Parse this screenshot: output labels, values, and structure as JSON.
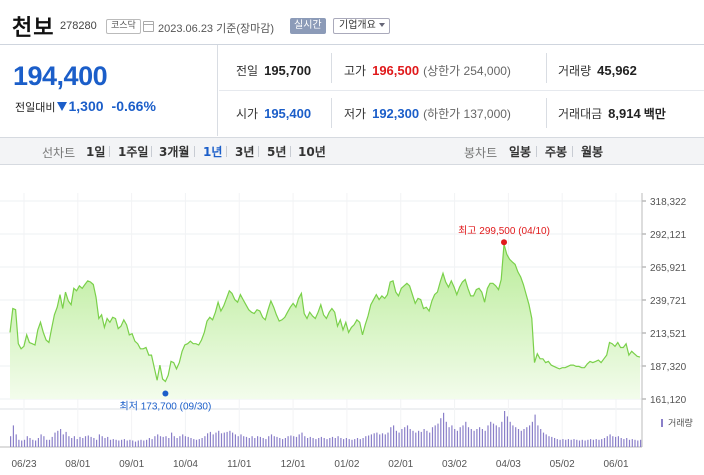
{
  "header": {
    "stock_name": "천보",
    "stock_code": "278280",
    "market": "코스닥",
    "date": "2023.06.23",
    "date_suffix": "기준(장마감)",
    "realtime_label": "실시간",
    "overview_label": "기업개요"
  },
  "price": {
    "current": "194,400",
    "change_label": "전일대비",
    "change": "1,300",
    "change_pct": "-0.66%",
    "direction": "down"
  },
  "quote": {
    "prev_close_label": "전일",
    "prev_close": "195,700",
    "high_label": "고가",
    "high": "196,500",
    "upper_limit": "(상한가 254,000)",
    "volume_label": "거래량",
    "volume": "45,962",
    "open_label": "시가",
    "open": "195,400",
    "low_label": "저가",
    "low": "192,300",
    "lower_limit": "(하한가 137,000)",
    "amount_label": "거래대금",
    "amount": "8,914",
    "amount_unit": "백만"
  },
  "tabs": {
    "line_chart_label": "선차트",
    "line_periods": [
      "1일",
      "1주일",
      "3개월",
      "1년",
      "3년",
      "5년",
      "10년"
    ],
    "active_period": "1년",
    "candle_chart_label": "봉차트",
    "candle_periods": [
      "일봉",
      "주봉",
      "월봉"
    ]
  },
  "colors": {
    "price_down": "#1b5ec9",
    "price_up": "#e0191b",
    "line": "#7ad04a",
    "area_top": "#b9ec98",
    "area_bottom": "#f3fcec",
    "volume_bar": "#8a7fc9"
  },
  "chart_data": {
    "type": "area",
    "y_ticks": [
      "318,322",
      "292,121",
      "265,921",
      "239,721",
      "213,521",
      "187,320",
      "161,120"
    ],
    "ylim": [
      161120,
      318322
    ],
    "x_ticks": [
      "06/23",
      "08/01",
      "09/01",
      "10/04",
      "11/01",
      "12/01",
      "01/02",
      "02/01",
      "03/02",
      "04/03",
      "05/02",
      "06/01"
    ],
    "high_label": "최고 299,500 (04/10)",
    "low_label": "최저 173,700 (09/30)",
    "volume_label": "거래량",
    "series": [
      {
        "values": [
          214000,
          233000,
          232000,
          205000,
          201000,
          203000,
          212000,
          206000,
          205000,
          204000,
          216000,
          222000,
          214000,
          208000,
          206000,
          217000,
          228000,
          234000,
          244000,
          233000,
          246000,
          239000,
          236000,
          249000,
          247000,
          251000,
          249000,
          252000,
          255000,
          254000,
          252000,
          242000,
          225000,
          228000,
          218000,
          225000,
          222000,
          226000,
          225000,
          217000,
          219000,
          224000,
          220000,
          212000,
          213000,
          207000,
          205000,
          201000,
          201000,
          202000,
          196000,
          196000,
          186000,
          176000,
          188000,
          177000,
          175000,
          180000,
          191000,
          190000,
          185000,
          190000,
          199000,
          204000,
          205000,
          207000,
          205000,
          205000,
          204000,
          208000,
          214000,
          223000,
          226000,
          224000,
          230000,
          238000,
          231000,
          235000,
          241000,
          247000,
          245000,
          240000,
          238000,
          244000,
          240000,
          236000,
          232000,
          230000,
          229000,
          232000,
          231000,
          226000,
          224000,
          232000,
          239000,
          234000,
          228000,
          223000,
          224000,
          226000,
          230000,
          234000,
          237000,
          234000,
          241000,
          245000,
          229000,
          225000,
          230000,
          227000,
          225000,
          230000,
          236000,
          228000,
          225000,
          230000,
          233000,
          230000,
          219000,
          224000,
          216000,
          222000,
          214000,
          218000,
          220000,
          224000,
          222000,
          212000,
          220000,
          227000,
          236000,
          240000,
          244000,
          240000,
          243000,
          241000,
          244000,
          254000,
          255000,
          246000,
          243000,
          249000,
          251000,
          253000,
          251000,
          244000,
          237000,
          241000,
          240000,
          233000,
          234000,
          231000,
          239000,
          244000,
          246000,
          254000,
          261000,
          254000,
          250000,
          255000,
          250000,
          244000,
          250000,
          254000,
          256000,
          249000,
          243000,
          243000,
          248000,
          249000,
          246000,
          238000,
          249000,
          253000,
          253000,
          251000,
          248000,
          256000,
          284000,
          276000,
          272000,
          270000,
          268000,
          262000,
          258000,
          252000,
          244000,
          236000,
          225000,
          190000,
          197000,
          193000,
          193000,
          190000,
          191000,
          188000,
          187000,
          186000,
          185000,
          186000,
          186000,
          187000,
          188000,
          188000,
          187000,
          187000,
          186000,
          186000,
          189000,
          191000,
          190000,
          191000,
          192000,
          190000,
          193000,
          196000,
          206000,
          205000,
          203000,
          206000,
          202000,
          202000,
          205000,
          196000,
          199000,
          197000,
          195000,
          194400
        ]
      }
    ],
    "volume_relative": [
      0.3,
      0.6,
      0.35,
      0.2,
      0.18,
      0.2,
      0.3,
      0.25,
      0.2,
      0.18,
      0.25,
      0.35,
      0.3,
      0.2,
      0.2,
      0.28,
      0.4,
      0.45,
      0.5,
      0.35,
      0.42,
      0.3,
      0.25,
      0.3,
      0.22,
      0.28,
      0.25,
      0.3,
      0.32,
      0.28,
      0.25,
      0.2,
      0.35,
      0.3,
      0.25,
      0.28,
      0.2,
      0.22,
      0.2,
      0.18,
      0.2,
      0.22,
      0.18,
      0.2,
      0.18,
      0.15,
      0.18,
      0.2,
      0.18,
      0.2,
      0.25,
      0.22,
      0.3,
      0.35,
      0.3,
      0.28,
      0.3,
      0.25,
      0.4,
      0.3,
      0.25,
      0.3,
      0.35,
      0.3,
      0.28,
      0.25,
      0.22,
      0.2,
      0.22,
      0.25,
      0.3,
      0.38,
      0.42,
      0.35,
      0.4,
      0.45,
      0.38,
      0.4,
      0.42,
      0.45,
      0.4,
      0.35,
      0.3,
      0.35,
      0.3,
      0.28,
      0.25,
      0.3,
      0.25,
      0.3,
      0.28,
      0.25,
      0.22,
      0.3,
      0.35,
      0.3,
      0.28,
      0.25,
      0.22,
      0.25,
      0.3,
      0.32,
      0.3,
      0.28,
      0.35,
      0.4,
      0.3,
      0.25,
      0.28,
      0.25,
      0.22,
      0.25,
      0.28,
      0.25,
      0.22,
      0.25,
      0.28,
      0.25,
      0.3,
      0.25,
      0.22,
      0.25,
      0.22,
      0.2,
      0.22,
      0.25,
      0.22,
      0.25,
      0.3,
      0.32,
      0.35,
      0.38,
      0.4,
      0.35,
      0.38,
      0.35,
      0.4,
      0.55,
      0.6,
      0.45,
      0.4,
      0.5,
      0.55,
      0.6,
      0.5,
      0.45,
      0.4,
      0.45,
      0.42,
      0.5,
      0.45,
      0.4,
      0.55,
      0.6,
      0.65,
      0.8,
      0.95,
      0.7,
      0.55,
      0.6,
      0.5,
      0.45,
      0.55,
      0.6,
      0.7,
      0.55,
      0.5,
      0.45,
      0.5,
      0.55,
      0.5,
      0.45,
      0.6,
      0.7,
      0.65,
      0.6,
      0.55,
      0.7,
      1.0,
      0.85,
      0.7,
      0.6,
      0.55,
      0.5,
      0.45,
      0.5,
      0.55,
      0.6,
      0.7,
      0.9,
      0.6,
      0.5,
      0.4,
      0.35,
      0.3,
      0.28,
      0.25,
      0.22,
      0.2,
      0.22,
      0.2,
      0.22,
      0.2,
      0.22,
      0.2,
      0.18,
      0.2,
      0.18,
      0.2,
      0.22,
      0.2,
      0.22,
      0.2,
      0.22,
      0.25,
      0.3,
      0.35,
      0.3,
      0.28,
      0.3,
      0.25,
      0.22,
      0.25,
      0.2,
      0.22,
      0.2,
      0.18,
      0.2
    ]
  }
}
